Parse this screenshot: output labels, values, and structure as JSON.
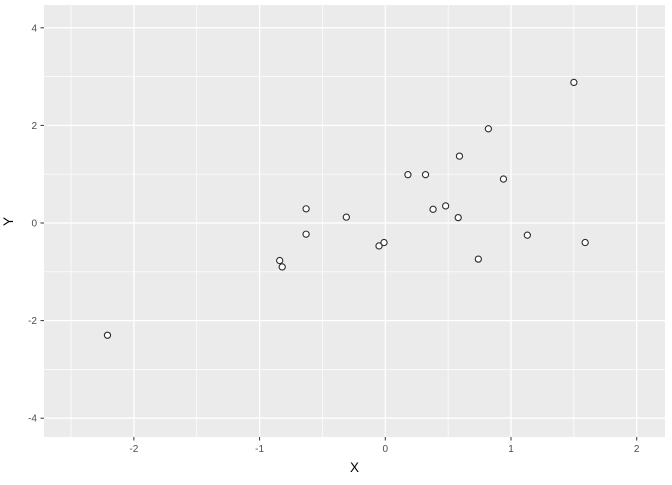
{
  "chart_data": {
    "type": "scatter",
    "title": "",
    "xlabel": "X",
    "ylabel": "Y",
    "points": [
      {
        "x": 1.5,
        "y": 2.88
      },
      {
        "x": 0.82,
        "y": 1.93
      },
      {
        "x": 0.59,
        "y": 1.37
      },
      {
        "x": 0.18,
        "y": 0.99
      },
      {
        "x": 0.32,
        "y": 0.99
      },
      {
        "x": 0.94,
        "y": 0.9
      },
      {
        "x": 0.38,
        "y": 0.28
      },
      {
        "x": 0.48,
        "y": 0.35
      },
      {
        "x": 0.58,
        "y": 0.11
      },
      {
        "x": -0.31,
        "y": 0.12
      },
      {
        "x": -0.63,
        "y": 0.29
      },
      {
        "x": -0.63,
        "y": -0.23
      },
      {
        "x": -0.05,
        "y": -0.47
      },
      {
        "x": -0.01,
        "y": -0.4
      },
      {
        "x": -0.84,
        "y": -0.77
      },
      {
        "x": -0.82,
        "y": -0.9
      },
      {
        "x": 1.13,
        "y": -0.25
      },
      {
        "x": 1.59,
        "y": -0.4
      },
      {
        "x": 0.74,
        "y": -0.74
      },
      {
        "x": -2.21,
        "y": -2.3
      }
    ],
    "x_ticks": [
      -2,
      -1,
      0,
      1,
      2
    ],
    "x_tick_labels": [
      "-2",
      "-1",
      "0",
      "1",
      "2"
    ],
    "y_ticks": [
      -4,
      -2,
      0,
      2,
      4
    ],
    "y_tick_labels": [
      "-4",
      "-2",
      "0",
      "2",
      "4"
    ],
    "x_minor_ticks": [
      -2.5,
      -1.5,
      -0.5,
      0.5,
      1.5
    ],
    "y_minor_ticks": [
      -3,
      -1,
      1,
      3
    ],
    "xlim": [
      -2.715,
      2.225
    ],
    "ylim": [
      -4.385,
      4.467
    ],
    "grid": "on",
    "legend": "none",
    "colors": {
      "panel_bg": "#EBEBEB",
      "grid_major": "#FFFFFF",
      "grid_minor": "#FFFFFF",
      "point_stroke": "#2B2B2B",
      "point_fill": "#FFFFFF",
      "tick_mark": "#333333",
      "tick_text": "#4D4D4D",
      "axis_title_text": "#000000"
    }
  }
}
